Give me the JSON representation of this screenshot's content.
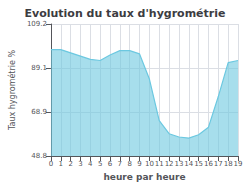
{
  "chart_data": {
    "type": "area",
    "title": "Evolution du taux d'hygrométrie",
    "xlabel": "heure par heure",
    "ylabel": "Taux hygrométrie %",
    "x": [
      0,
      1,
      2,
      3,
      4,
      5,
      6,
      7,
      8,
      9,
      10,
      11,
      12,
      13,
      14,
      15,
      16,
      17,
      18,
      19
    ],
    "values": [
      97.5,
      97.5,
      96.0,
      94.5,
      93.0,
      92.5,
      95.0,
      97.0,
      97.0,
      95.5,
      84.0,
      65.0,
      59.0,
      57.5,
      57.0,
      58.5,
      62.0,
      76.0,
      91.5,
      92.5
    ],
    "color": "#6cc8e0",
    "xlim": [
      0,
      19
    ],
    "xticks": [
      0,
      1,
      2,
      3,
      4,
      5,
      6,
      7,
      8,
      9,
      10,
      11,
      12,
      13,
      14,
      15,
      16,
      17,
      18,
      19
    ],
    "ylim": [
      48.8,
      109.2
    ],
    "yticks": [
      48.8,
      68.9,
      89.1,
      109.2
    ],
    "grid": true
  }
}
